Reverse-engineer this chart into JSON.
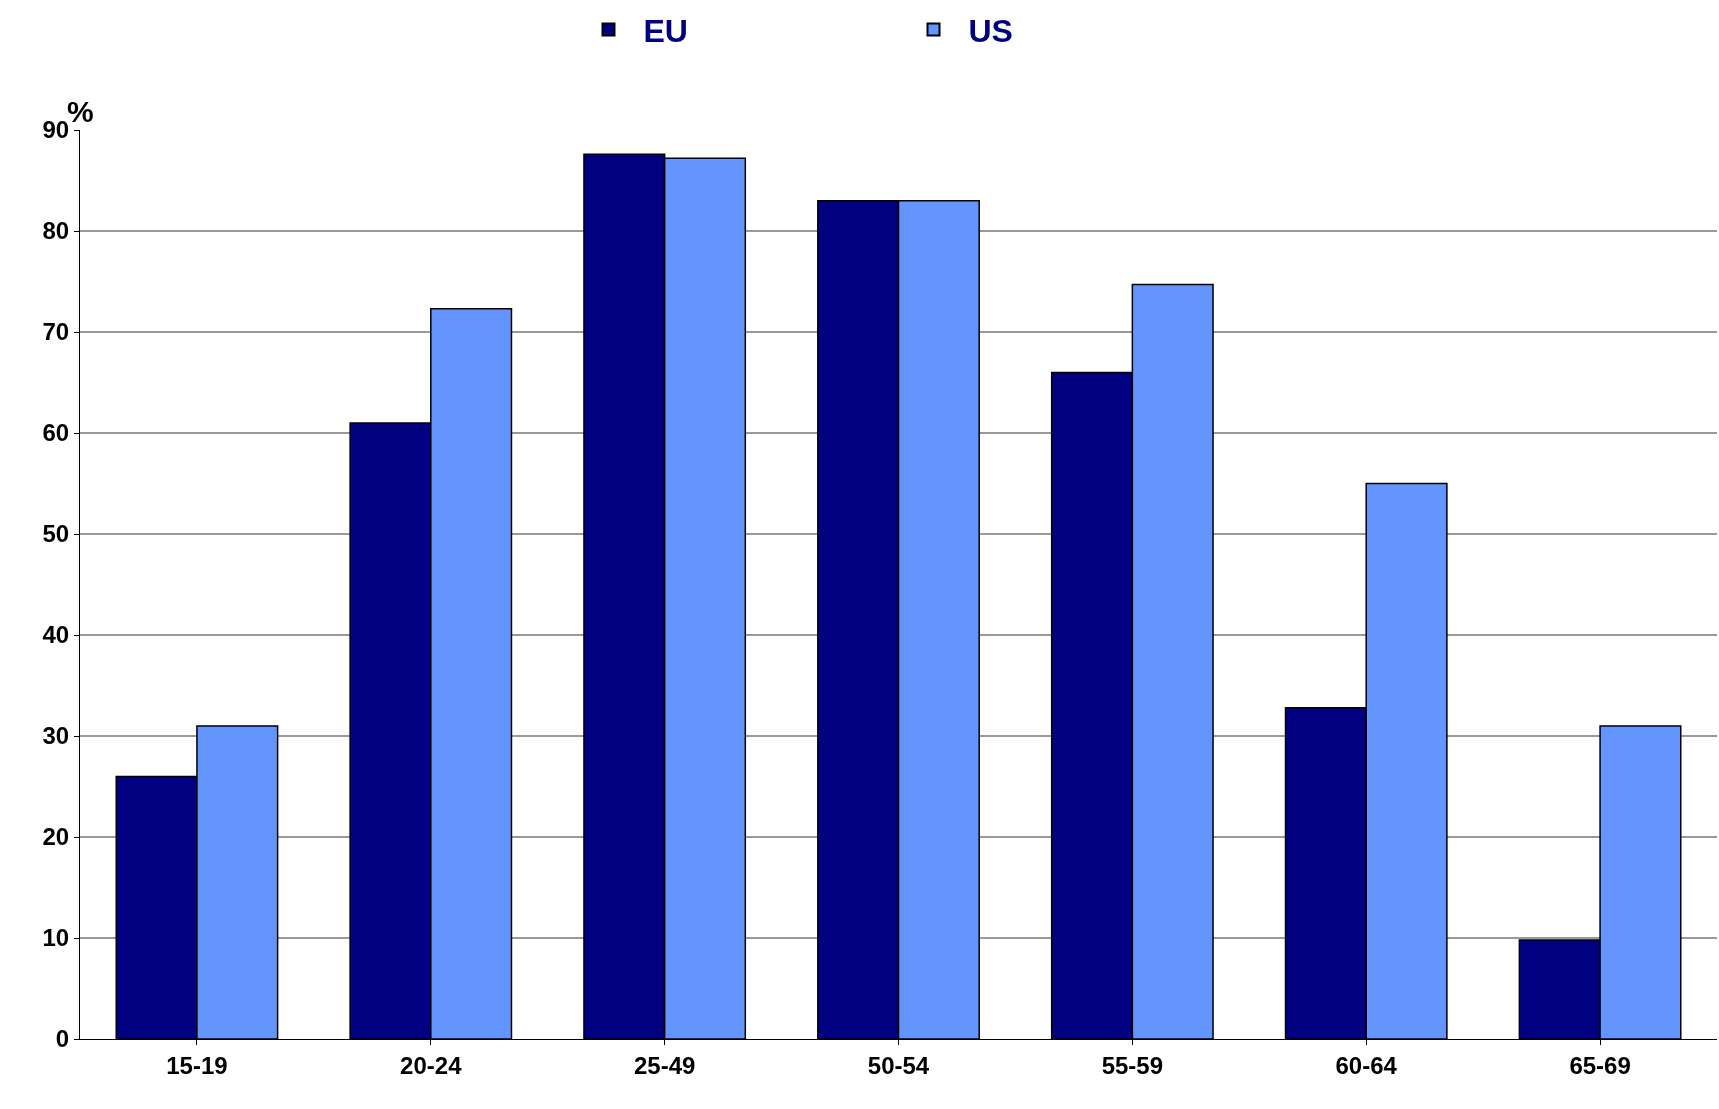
{
  "chart_data": {
    "type": "bar",
    "ylabel": "%",
    "categories": [
      "15-19",
      "20-24",
      "25-49",
      "50-54",
      "55-59",
      "60-64",
      "65-69"
    ],
    "series": [
      {
        "name": "EU",
        "color": "#000080",
        "values": [
          26,
          61,
          87.6,
          83,
          66,
          32.8,
          9.8
        ]
      },
      {
        "name": "US",
        "color": "#6495ff",
        "values": [
          31,
          72.3,
          87.2,
          83,
          74.7,
          55,
          31
        ]
      }
    ],
    "ylim": [
      0,
      90
    ],
    "yticks": [
      0,
      10,
      20,
      30,
      40,
      50,
      60,
      70,
      80,
      90
    ],
    "grid": "y",
    "legend": "top"
  }
}
